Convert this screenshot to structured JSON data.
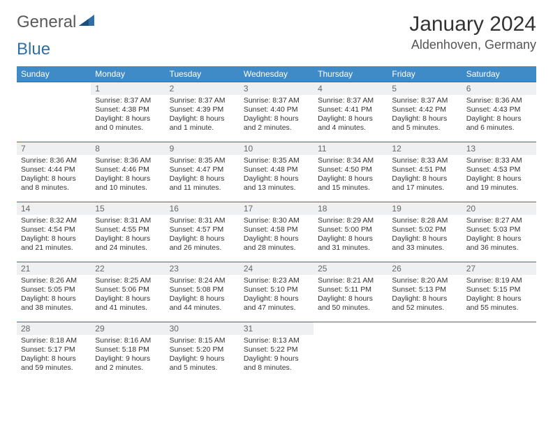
{
  "logo": {
    "text1": "General",
    "text2": "Blue"
  },
  "title": "January 2024",
  "location": "Aldenhoven, Germany",
  "colors": {
    "header_bg": "#3e8bc8",
    "header_text": "#ffffff",
    "border": "#2f6fa8",
    "daynum_bg": "#eef0f1",
    "page_bg": "#ffffff"
  },
  "typography": {
    "body_fontsize": 10.5,
    "title_fontsize": 30,
    "location_fontsize": 18
  },
  "weekdays": [
    "Sunday",
    "Monday",
    "Tuesday",
    "Wednesday",
    "Thursday",
    "Friday",
    "Saturday"
  ],
  "weeks": [
    [
      {
        "n": "",
        "sr": "",
        "ss": "",
        "dl": ""
      },
      {
        "n": "1",
        "sr": "Sunrise: 8:37 AM",
        "ss": "Sunset: 4:38 PM",
        "dl": "Daylight: 8 hours and 0 minutes."
      },
      {
        "n": "2",
        "sr": "Sunrise: 8:37 AM",
        "ss": "Sunset: 4:39 PM",
        "dl": "Daylight: 8 hours and 1 minute."
      },
      {
        "n": "3",
        "sr": "Sunrise: 8:37 AM",
        "ss": "Sunset: 4:40 PM",
        "dl": "Daylight: 8 hours and 2 minutes."
      },
      {
        "n": "4",
        "sr": "Sunrise: 8:37 AM",
        "ss": "Sunset: 4:41 PM",
        "dl": "Daylight: 8 hours and 4 minutes."
      },
      {
        "n": "5",
        "sr": "Sunrise: 8:37 AM",
        "ss": "Sunset: 4:42 PM",
        "dl": "Daylight: 8 hours and 5 minutes."
      },
      {
        "n": "6",
        "sr": "Sunrise: 8:36 AM",
        "ss": "Sunset: 4:43 PM",
        "dl": "Daylight: 8 hours and 6 minutes."
      }
    ],
    [
      {
        "n": "7",
        "sr": "Sunrise: 8:36 AM",
        "ss": "Sunset: 4:44 PM",
        "dl": "Daylight: 8 hours and 8 minutes."
      },
      {
        "n": "8",
        "sr": "Sunrise: 8:36 AM",
        "ss": "Sunset: 4:46 PM",
        "dl": "Daylight: 8 hours and 10 minutes."
      },
      {
        "n": "9",
        "sr": "Sunrise: 8:35 AM",
        "ss": "Sunset: 4:47 PM",
        "dl": "Daylight: 8 hours and 11 minutes."
      },
      {
        "n": "10",
        "sr": "Sunrise: 8:35 AM",
        "ss": "Sunset: 4:48 PM",
        "dl": "Daylight: 8 hours and 13 minutes."
      },
      {
        "n": "11",
        "sr": "Sunrise: 8:34 AM",
        "ss": "Sunset: 4:50 PM",
        "dl": "Daylight: 8 hours and 15 minutes."
      },
      {
        "n": "12",
        "sr": "Sunrise: 8:33 AM",
        "ss": "Sunset: 4:51 PM",
        "dl": "Daylight: 8 hours and 17 minutes."
      },
      {
        "n": "13",
        "sr": "Sunrise: 8:33 AM",
        "ss": "Sunset: 4:53 PM",
        "dl": "Daylight: 8 hours and 19 minutes."
      }
    ],
    [
      {
        "n": "14",
        "sr": "Sunrise: 8:32 AM",
        "ss": "Sunset: 4:54 PM",
        "dl": "Daylight: 8 hours and 21 minutes."
      },
      {
        "n": "15",
        "sr": "Sunrise: 8:31 AM",
        "ss": "Sunset: 4:55 PM",
        "dl": "Daylight: 8 hours and 24 minutes."
      },
      {
        "n": "16",
        "sr": "Sunrise: 8:31 AM",
        "ss": "Sunset: 4:57 PM",
        "dl": "Daylight: 8 hours and 26 minutes."
      },
      {
        "n": "17",
        "sr": "Sunrise: 8:30 AM",
        "ss": "Sunset: 4:58 PM",
        "dl": "Daylight: 8 hours and 28 minutes."
      },
      {
        "n": "18",
        "sr": "Sunrise: 8:29 AM",
        "ss": "Sunset: 5:00 PM",
        "dl": "Daylight: 8 hours and 31 minutes."
      },
      {
        "n": "19",
        "sr": "Sunrise: 8:28 AM",
        "ss": "Sunset: 5:02 PM",
        "dl": "Daylight: 8 hours and 33 minutes."
      },
      {
        "n": "20",
        "sr": "Sunrise: 8:27 AM",
        "ss": "Sunset: 5:03 PM",
        "dl": "Daylight: 8 hours and 36 minutes."
      }
    ],
    [
      {
        "n": "21",
        "sr": "Sunrise: 8:26 AM",
        "ss": "Sunset: 5:05 PM",
        "dl": "Daylight: 8 hours and 38 minutes."
      },
      {
        "n": "22",
        "sr": "Sunrise: 8:25 AM",
        "ss": "Sunset: 5:06 PM",
        "dl": "Daylight: 8 hours and 41 minutes."
      },
      {
        "n": "23",
        "sr": "Sunrise: 8:24 AM",
        "ss": "Sunset: 5:08 PM",
        "dl": "Daylight: 8 hours and 44 minutes."
      },
      {
        "n": "24",
        "sr": "Sunrise: 8:23 AM",
        "ss": "Sunset: 5:10 PM",
        "dl": "Daylight: 8 hours and 47 minutes."
      },
      {
        "n": "25",
        "sr": "Sunrise: 8:21 AM",
        "ss": "Sunset: 5:11 PM",
        "dl": "Daylight: 8 hours and 50 minutes."
      },
      {
        "n": "26",
        "sr": "Sunrise: 8:20 AM",
        "ss": "Sunset: 5:13 PM",
        "dl": "Daylight: 8 hours and 52 minutes."
      },
      {
        "n": "27",
        "sr": "Sunrise: 8:19 AM",
        "ss": "Sunset: 5:15 PM",
        "dl": "Daylight: 8 hours and 55 minutes."
      }
    ],
    [
      {
        "n": "28",
        "sr": "Sunrise: 8:18 AM",
        "ss": "Sunset: 5:17 PM",
        "dl": "Daylight: 8 hours and 59 minutes."
      },
      {
        "n": "29",
        "sr": "Sunrise: 8:16 AM",
        "ss": "Sunset: 5:18 PM",
        "dl": "Daylight: 9 hours and 2 minutes."
      },
      {
        "n": "30",
        "sr": "Sunrise: 8:15 AM",
        "ss": "Sunset: 5:20 PM",
        "dl": "Daylight: 9 hours and 5 minutes."
      },
      {
        "n": "31",
        "sr": "Sunrise: 8:13 AM",
        "ss": "Sunset: 5:22 PM",
        "dl": "Daylight: 9 hours and 8 minutes."
      },
      {
        "n": "",
        "sr": "",
        "ss": "",
        "dl": ""
      },
      {
        "n": "",
        "sr": "",
        "ss": "",
        "dl": ""
      },
      {
        "n": "",
        "sr": "",
        "ss": "",
        "dl": ""
      }
    ]
  ]
}
